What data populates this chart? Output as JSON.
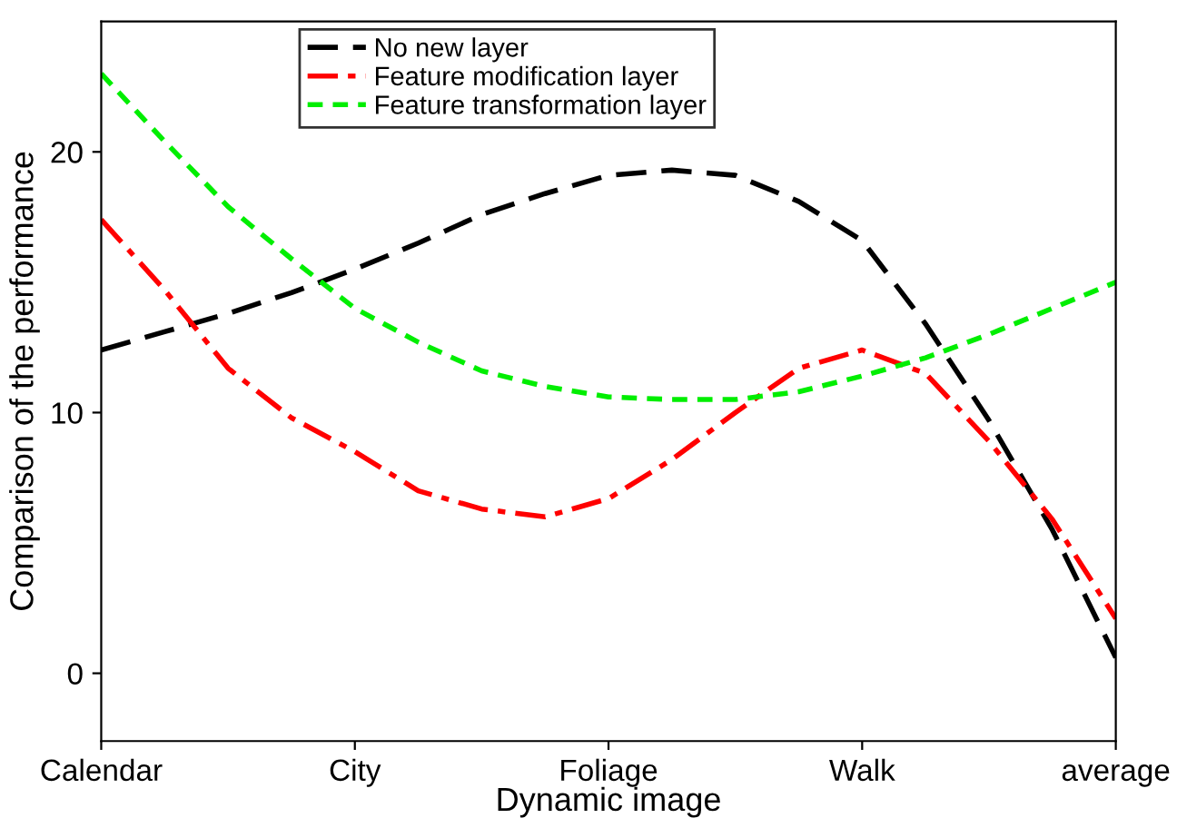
{
  "chart_data": {
    "type": "line",
    "xlabel": "Dynamic image",
    "ylabel": "Comparison of the performance",
    "categories": [
      "Calendar",
      null,
      null,
      null,
      "City",
      null,
      null,
      null,
      "Foliage",
      null,
      null,
      null,
      "Walk",
      null,
      null,
      null,
      "average"
    ],
    "series": [
      {
        "name": "No new layer",
        "color": "#000000",
        "line_style": "dashed",
        "values": [
          12.4,
          13.1,
          13.8,
          14.6,
          15.5,
          16.5,
          17.6,
          18.4,
          19.1,
          19.3,
          19.1,
          18.1,
          16.6,
          13.4,
          9.7,
          5.5,
          0.6
        ]
      },
      {
        "name": "Feature modification layer",
        "color": "#ff0000",
        "line_style": "dashdot",
        "values": [
          17.4,
          14.7,
          11.7,
          9.8,
          8.5,
          7.0,
          6.3,
          6.0,
          6.7,
          8.2,
          10.0,
          11.7,
          12.4,
          11.5,
          8.9,
          5.9,
          2.1
        ]
      },
      {
        "name": "Feature transformation layer",
        "color": "#00ee00",
        "line_style": "dotted",
        "values": [
          23.0,
          20.4,
          17.9,
          15.9,
          14.0,
          12.7,
          11.6,
          11.0,
          10.6,
          10.5,
          10.5,
          10.8,
          11.4,
          12.1,
          13.0,
          14.0,
          15.0
        ]
      }
    ],
    "ylim": [
      -2.6,
      25
    ],
    "yticks": [
      0,
      10,
      20
    ],
    "grid": false,
    "legend": "top",
    "marker": "none"
  }
}
